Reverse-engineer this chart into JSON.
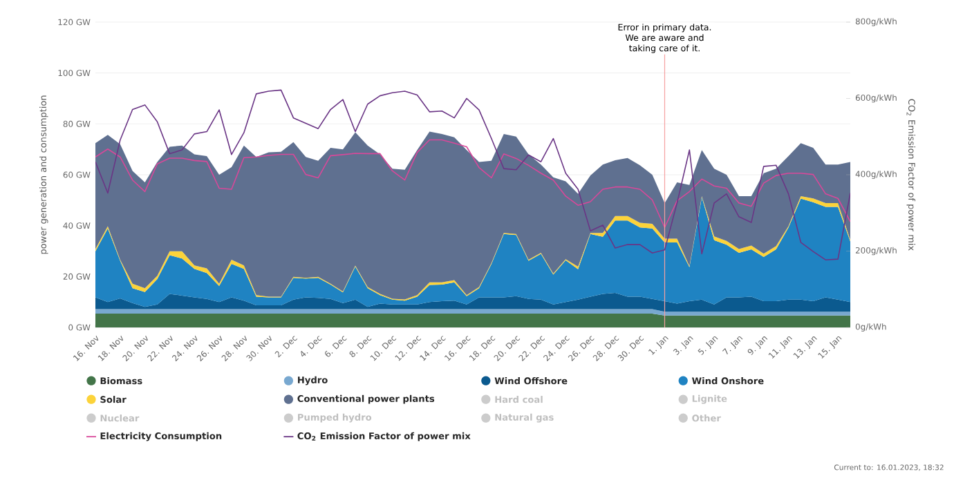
{
  "chart_data": {
    "type": "area",
    "stacked": true,
    "ylabel": "power generation and consumption",
    "y2label": "CO$_{2}$ Emission Factor of power mix",
    "x": [
      "2022-11-16",
      "2022-11-17",
      "2022-11-18",
      "2022-11-19",
      "2022-11-20",
      "2022-11-21",
      "2022-11-22",
      "2022-11-23",
      "2022-11-24",
      "2022-11-25",
      "2022-11-26",
      "2022-11-27",
      "2022-11-28",
      "2022-11-29",
      "2022-11-30",
      "2022-12-01",
      "2022-12-02",
      "2022-12-03",
      "2022-12-04",
      "2022-12-05",
      "2022-12-06",
      "2022-12-07",
      "2022-12-08",
      "2022-12-09",
      "2022-12-10",
      "2022-12-11",
      "2022-12-12",
      "2022-12-13",
      "2022-12-14",
      "2022-12-15",
      "2022-12-16",
      "2022-12-17",
      "2022-12-18",
      "2022-12-19",
      "2022-12-20",
      "2022-12-21",
      "2022-12-22",
      "2022-12-23",
      "2022-12-24",
      "2022-12-25",
      "2022-12-26",
      "2022-12-27",
      "2022-12-28",
      "2022-12-29",
      "2022-12-30",
      "2022-12-31",
      "2023-01-01",
      "2023-01-02",
      "2023-01-03",
      "2023-01-04",
      "2023-01-05",
      "2023-01-06",
      "2023-01-07",
      "2023-01-08",
      "2023-01-09",
      "2023-01-10",
      "2023-01-11",
      "2023-01-12",
      "2023-01-13",
      "2023-01-14",
      "2023-01-15",
      "2023-01-16"
    ],
    "xlim": [
      "2022-11-16",
      "2023-01-16"
    ],
    "xticks": [
      {
        "value": "2022-11-16",
        "label": "16. Nov"
      },
      {
        "value": "2022-11-18",
        "label": "18. Nov"
      },
      {
        "value": "2022-11-20",
        "label": "20. Nov"
      },
      {
        "value": "2022-11-22",
        "label": "22. Nov"
      },
      {
        "value": "2022-11-24",
        "label": "24. Nov"
      },
      {
        "value": "2022-11-26",
        "label": "26. Nov"
      },
      {
        "value": "2022-11-28",
        "label": "28. Nov"
      },
      {
        "value": "2022-11-30",
        "label": "30. Nov"
      },
      {
        "value": "2022-12-02",
        "label": "2. Dec"
      },
      {
        "value": "2022-12-04",
        "label": "4. Dec"
      },
      {
        "value": "2022-12-06",
        "label": "6. Dec"
      },
      {
        "value": "2022-12-08",
        "label": "8. Dec"
      },
      {
        "value": "2022-12-10",
        "label": "10. Dec"
      },
      {
        "value": "2022-12-12",
        "label": "12. Dec"
      },
      {
        "value": "2022-12-14",
        "label": "14. Dec"
      },
      {
        "value": "2022-12-16",
        "label": "16. Dec"
      },
      {
        "value": "2022-12-18",
        "label": "18. Dec"
      },
      {
        "value": "2022-12-20",
        "label": "20. Dec"
      },
      {
        "value": "2022-12-22",
        "label": "22. Dec"
      },
      {
        "value": "2022-12-24",
        "label": "24. Dec"
      },
      {
        "value": "2022-12-26",
        "label": "26. Dec"
      },
      {
        "value": "2022-12-28",
        "label": "28. Dec"
      },
      {
        "value": "2022-12-30",
        "label": "30. Dec"
      },
      {
        "value": "2023-01-01",
        "label": "1. Jan"
      },
      {
        "value": "2023-01-03",
        "label": "3. Jan"
      },
      {
        "value": "2023-01-05",
        "label": "5. Jan"
      },
      {
        "value": "2023-01-07",
        "label": "7. Jan"
      },
      {
        "value": "2023-01-09",
        "label": "9. Jan"
      },
      {
        "value": "2023-01-11",
        "label": "11. Jan"
      },
      {
        "value": "2023-01-13",
        "label": "13. Jan"
      },
      {
        "value": "2023-01-15",
        "label": "15. Jan"
      }
    ],
    "ylim": [
      0,
      120
    ],
    "yticks": [
      {
        "value": 0,
        "label": "0 GW"
      },
      {
        "value": 20,
        "label": "20 GW"
      },
      {
        "value": 40,
        "label": "40 GW"
      },
      {
        "value": 60,
        "label": "60 GW"
      },
      {
        "value": 80,
        "label": "80 GW"
      },
      {
        "value": 100,
        "label": "100 GW"
      },
      {
        "value": 120,
        "label": "120 GW"
      }
    ],
    "y2lim": [
      0,
      800
    ],
    "y2ticks": [
      {
        "value": 0,
        "label": "0g/kWh"
      },
      {
        "value": 200,
        "label": "200g/kWh"
      },
      {
        "value": 400,
        "label": "400g/kWh"
      },
      {
        "value": 600,
        "label": "600g/kWh"
      },
      {
        "value": 800,
        "label": "800g/kWh"
      }
    ],
    "grid": "y",
    "legend": "bottom",
    "series": [
      {
        "name": "Biomass",
        "color": "#437549",
        "values": [
          5.4,
          5.4,
          5.4,
          5.4,
          5.4,
          5.4,
          5.4,
          5.4,
          5.4,
          5.4,
          5.4,
          5.4,
          5.4,
          5.4,
          5.4,
          5.4,
          5.4,
          5.4,
          5.4,
          5.4,
          5.4,
          5.4,
          5.4,
          5.4,
          5.4,
          5.4,
          5.4,
          5.4,
          5.4,
          5.4,
          5.4,
          5.4,
          5.4,
          5.4,
          5.4,
          5.4,
          5.4,
          5.4,
          5.4,
          5.4,
          5.4,
          5.4,
          5.4,
          5.4,
          5.4,
          5.4,
          4.7,
          4.7,
          4.7,
          4.7,
          4.7,
          4.7,
          4.7,
          4.7,
          4.7,
          4.7,
          4.7,
          4.7,
          4.7,
          4.7,
          4.7,
          4.7
        ]
      },
      {
        "name": "Hydro",
        "color": "#78a8d0",
        "values": [
          1.8,
          1.8,
          1.8,
          1.8,
          1.8,
          1.8,
          1.8,
          1.8,
          1.8,
          1.8,
          1.8,
          1.8,
          1.8,
          1.8,
          1.8,
          1.8,
          1.8,
          1.8,
          1.8,
          1.8,
          1.8,
          1.8,
          1.8,
          1.8,
          1.8,
          1.8,
          1.8,
          1.8,
          1.8,
          1.8,
          1.8,
          1.8,
          1.8,
          1.8,
          1.8,
          1.8,
          1.8,
          1.8,
          1.8,
          1.8,
          1.8,
          1.8,
          1.8,
          1.8,
          1.8,
          1.8,
          1.5,
          1.5,
          1.5,
          1.5,
          1.5,
          1.5,
          1.5,
          1.5,
          1.5,
          1.5,
          1.5,
          1.5,
          1.5,
          1.5,
          1.5,
          1.5
        ]
      },
      {
        "name": "Wind Offshore",
        "color": "#0b5a8f",
        "values": [
          4.6,
          2.8,
          4.2,
          2.4,
          0.9,
          1.8,
          6,
          5.3,
          4.6,
          4,
          2.8,
          4.6,
          3.3,
          1.5,
          1.5,
          1.5,
          3.7,
          4.6,
          4.4,
          4,
          2.4,
          3.7,
          0.9,
          2.2,
          1.8,
          1.8,
          1.8,
          2.8,
          3.1,
          3.3,
          1.8,
          4.6,
          4.6,
          4.6,
          5.1,
          4,
          3.7,
          1.8,
          2.8,
          3.7,
          4.9,
          6,
          6.4,
          4.9,
          4.9,
          4,
          4.1,
          3.2,
          4.1,
          4.7,
          2.8,
          5.6,
          5.6,
          5.9,
          4.1,
          4.1,
          4.7,
          4.7,
          4.1,
          5.6,
          4.7,
          3.8
        ]
      },
      {
        "name": "Wind Onshore",
        "color": "#1f83c2",
        "values": [
          18.1,
          28.9,
          14.8,
          5.8,
          5.8,
          10,
          15.2,
          14.6,
          11.2,
          10.2,
          6.3,
          13.2,
          12.5,
          3.4,
          3.1,
          3.1,
          8.6,
          7.4,
          7.9,
          5.6,
          4.2,
          13,
          7.3,
          3.3,
          1.9,
          1.5,
          3.1,
          6.7,
          6.5,
          7.2,
          3.3,
          3.6,
          13.1,
          24.9,
          24,
          15,
          18,
          11.8,
          16.4,
          12,
          24.6,
          22.4,
          28.4,
          29.9,
          27.2,
          27.7,
          23.1,
          24,
          13.4,
          40.3,
          25.3,
          20.7,
          17.5,
          18.6,
          17.4,
          20.4,
          28.3,
          39.7,
          38.9,
          35.6,
          36.5,
          23.8
        ]
      },
      {
        "name": "Solar",
        "color": "#fcd33a",
        "values": [
          0.9,
          0.9,
          0.4,
          1.8,
          1.5,
          1.3,
          1.5,
          2.8,
          1.4,
          1.8,
          0.9,
          1.6,
          1.4,
          0.6,
          0.3,
          0.3,
          0.4,
          0.3,
          0.4,
          0.4,
          0.3,
          0.4,
          0.5,
          0.5,
          0.4,
          0.5,
          0.6,
          1,
          0.9,
          0.9,
          0.4,
          0.5,
          0.4,
          0.4,
          0.4,
          0.4,
          0.4,
          0.4,
          0.4,
          1,
          0.4,
          1.5,
          1.8,
          1.8,
          1.8,
          1.8,
          1.5,
          1.5,
          0.4,
          0.4,
          1.5,
          1.5,
          1.5,
          1.5,
          1.3,
          1.3,
          0.6,
          1,
          1.5,
          1.5,
          1.5,
          0.6
        ]
      },
      {
        "name": "Conventional power plants",
        "color": "#5f7090",
        "values": [
          41.6,
          35.9,
          45.4,
          44.3,
          41.6,
          44.7,
          41.1,
          41.6,
          43.6,
          44.1,
          42.8,
          36.4,
          47.1,
          54.3,
          56.7,
          56.9,
          52.9,
          47.5,
          45.6,
          53.4,
          55.9,
          52.4,
          55.6,
          54.8,
          51.1,
          51,
          57,
          59.3,
          58.3,
          56.1,
          57,
          49.1,
          40.2,
          38.9,
          38.3,
          41.4,
          34.7,
          37.8,
          30.6,
          28.6,
          22.6,
          26.9,
          21.9,
          22.8,
          22.6,
          19.3,
          14,
          22.1,
          31.9,
          18.1,
          26.6,
          26,
          20.8,
          19.4,
          31.6,
          30.4,
          27.5,
          20.8,
          19.9,
          15.1,
          15.1,
          30.6
        ]
      },
      {
        "name": "Hard coal",
        "color": "#cccccc",
        "values": [
          null,
          null,
          null,
          null,
          null,
          null,
          null,
          null,
          null,
          null,
          null,
          null,
          null,
          null,
          null,
          null,
          null,
          null,
          null,
          null,
          null,
          null,
          null,
          null,
          null,
          null,
          null,
          null,
          null,
          null,
          null,
          null,
          null,
          null,
          null,
          null,
          null,
          null,
          null,
          null,
          null,
          null,
          null,
          null,
          null,
          null,
          null,
          null,
          null,
          null,
          null,
          null,
          null,
          null,
          null,
          null,
          null,
          null,
          null,
          null,
          null,
          null
        ]
      },
      {
        "name": "Lignite",
        "color": "#cccccc",
        "values": [
          null,
          null,
          null,
          null,
          null,
          null,
          null,
          null,
          null,
          null,
          null,
          null,
          null,
          null,
          null,
          null,
          null,
          null,
          null,
          null,
          null,
          null,
          null,
          null,
          null,
          null,
          null,
          null,
          null,
          null,
          null,
          null,
          null,
          null,
          null,
          null,
          null,
          null,
          null,
          null,
          null,
          null,
          null,
          null,
          null,
          null,
          null,
          null,
          null,
          null,
          null,
          null,
          null,
          null,
          null,
          null,
          null,
          null,
          null,
          null,
          null,
          null
        ]
      },
      {
        "name": "Nuclear",
        "color": "#cccccc",
        "values": [
          null,
          null,
          null,
          null,
          null,
          null,
          null,
          null,
          null,
          null,
          null,
          null,
          null,
          null,
          null,
          null,
          null,
          null,
          null,
          null,
          null,
          null,
          null,
          null,
          null,
          null,
          null,
          null,
          null,
          null,
          null,
          null,
          null,
          null,
          null,
          null,
          null,
          null,
          null,
          null,
          null,
          null,
          null,
          null,
          null,
          null,
          null,
          null,
          null,
          null,
          null,
          null,
          null,
          null,
          null,
          null,
          null,
          null,
          null,
          null,
          null,
          null
        ]
      },
      {
        "name": "Pumped hydro",
        "color": "#cccccc",
        "values": [
          null,
          null,
          null,
          null,
          null,
          null,
          null,
          null,
          null,
          null,
          null,
          null,
          null,
          null,
          null,
          null,
          null,
          null,
          null,
          null,
          null,
          null,
          null,
          null,
          null,
          null,
          null,
          null,
          null,
          null,
          null,
          null,
          null,
          null,
          null,
          null,
          null,
          null,
          null,
          null,
          null,
          null,
          null,
          null,
          null,
          null,
          null,
          null,
          null,
          null,
          null,
          null,
          null,
          null,
          null,
          null,
          null,
          null,
          null,
          null,
          null,
          null
        ]
      },
      {
        "name": "Natural gas",
        "color": "#cccccc",
        "values": [
          null,
          null,
          null,
          null,
          null,
          null,
          null,
          null,
          null,
          null,
          null,
          null,
          null,
          null,
          null,
          null,
          null,
          null,
          null,
          null,
          null,
          null,
          null,
          null,
          null,
          null,
          null,
          null,
          null,
          null,
          null,
          null,
          null,
          null,
          null,
          null,
          null,
          null,
          null,
          null,
          null,
          null,
          null,
          null,
          null,
          null,
          null,
          null,
          null,
          null,
          null,
          null,
          null,
          null,
          null,
          null,
          null,
          null,
          null,
          null,
          null,
          null
        ]
      },
      {
        "name": "Other",
        "color": "#cccccc",
        "values": [
          null,
          null,
          null,
          null,
          null,
          null,
          null,
          null,
          null,
          null,
          null,
          null,
          null,
          null,
          null,
          null,
          null,
          null,
          null,
          null,
          null,
          null,
          null,
          null,
          null,
          null,
          null,
          null,
          null,
          null,
          null,
          null,
          null,
          null,
          null,
          null,
          null,
          null,
          null,
          null,
          null,
          null,
          null,
          null,
          null,
          null,
          null,
          null,
          null,
          null,
          null,
          null,
          null,
          null,
          null,
          null,
          null,
          null,
          null,
          null,
          null,
          null
        ]
      },
      {
        "name": "Electricity Consumption",
        "type": "line",
        "color": "#d9489a",
        "values": [
          67,
          70.1,
          67,
          57.9,
          53.4,
          64.3,
          66.5,
          66.5,
          65.6,
          65.2,
          54.7,
          54.3,
          66.7,
          67,
          67.6,
          68,
          68,
          60.1,
          58.8,
          67.5,
          67.9,
          68.4,
          68.3,
          68.3,
          61.5,
          57.9,
          68.8,
          73.7,
          73.7,
          72.4,
          71,
          62.8,
          58.8,
          68.2,
          66.4,
          63.7,
          60.6,
          57.9,
          51.6,
          48,
          49.4,
          54.3,
          55.2,
          55.2,
          54.3,
          50.1,
          39.3,
          49.8,
          53.4,
          58.3,
          55.6,
          54.7,
          48.9,
          47.6,
          56.7,
          59.7,
          60.6,
          60.6,
          60.1,
          52.5,
          50.7,
          41.6
        ]
      },
      {
        "name": "CO$_{2}$ Emission Factor of power mix",
        "type": "line",
        "axis": "y2",
        "color": "#6a3585",
        "values": [
          434,
          352,
          491,
          571,
          583,
          539,
          455,
          465,
          507,
          513,
          570,
          453,
          510,
          612,
          619,
          622,
          549,
          535,
          521,
          571,
          597,
          513,
          585,
          607,
          615,
          619,
          609,
          565,
          567,
          549,
          600,
          570,
          495,
          416,
          413,
          452,
          434,
          495,
          404,
          362,
          253,
          268,
          208,
          217,
          217,
          195,
          203,
          326,
          465,
          193,
          326,
          350,
          290,
          275,
          422,
          425,
          350,
          223,
          199,
          177,
          179,
          352
        ]
      }
    ],
    "ref_lines": [
      {
        "axis": "x",
        "value": "2023-01-01",
        "label": "Error in primary data. We are aware and taking care of it.",
        "color": "#f5a0a0"
      }
    ],
    "annotations": [
      "Current to: 16.01.2023, 18:32"
    ]
  }
}
